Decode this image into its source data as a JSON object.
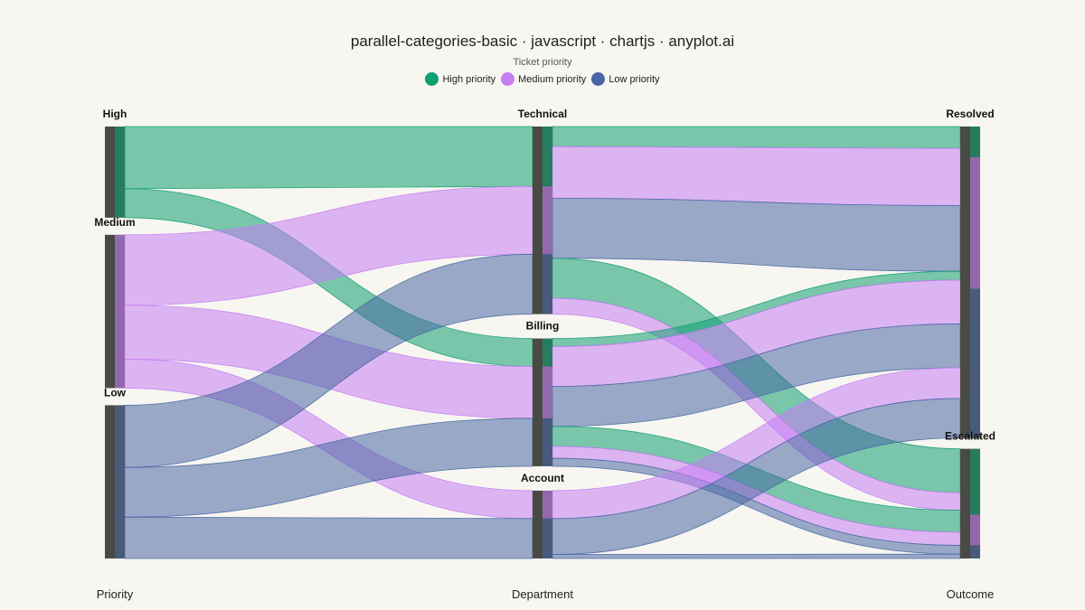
{
  "title": "parallel-categories-basic · javascript · chartjs · anyplot.ai",
  "subtitle": "Ticket priority",
  "colors": {
    "High": "#109e73",
    "Medium": "#c57ef4",
    "Low": "#4868a4",
    "bar": "#4a4a44"
  },
  "legend": [
    {
      "label": "High priority",
      "key": "High"
    },
    {
      "label": "Medium priority",
      "key": "Medium"
    },
    {
      "label": "Low priority",
      "key": "Low"
    }
  ],
  "chart_data": {
    "type": "parallel-categories",
    "dimensions": [
      {
        "name": "Priority",
        "categories": [
          "High",
          "Medium",
          "Low"
        ]
      },
      {
        "name": "Department",
        "categories": [
          "Technical",
          "Billing",
          "Account"
        ]
      },
      {
        "name": "Outcome",
        "categories": [
          "Resolved",
          "Escalated"
        ]
      }
    ],
    "color_by": "Priority",
    "flows": [
      {
        "priority": "High",
        "department": "Technical",
        "outcome": "Resolved",
        "count": 5
      },
      {
        "priority": "High",
        "department": "Technical",
        "outcome": "Escalated",
        "count": 10
      },
      {
        "priority": "High",
        "department": "Billing",
        "outcome": "Resolved",
        "count": 2
      },
      {
        "priority": "High",
        "department": "Billing",
        "outcome": "Escalated",
        "count": 5
      },
      {
        "priority": "Medium",
        "department": "Technical",
        "outcome": "Resolved",
        "count": 13
      },
      {
        "priority": "Medium",
        "department": "Technical",
        "outcome": "Escalated",
        "count": 4
      },
      {
        "priority": "Medium",
        "department": "Billing",
        "outcome": "Resolved",
        "count": 10
      },
      {
        "priority": "Medium",
        "department": "Billing",
        "outcome": "Escalated",
        "count": 3
      },
      {
        "priority": "Medium",
        "department": "Account",
        "outcome": "Resolved",
        "count": 7
      },
      {
        "priority": "Low",
        "department": "Technical",
        "outcome": "Resolved",
        "count": 15
      },
      {
        "priority": "Low",
        "department": "Billing",
        "outcome": "Resolved",
        "count": 10
      },
      {
        "priority": "Low",
        "department": "Billing",
        "outcome": "Escalated",
        "count": 2
      },
      {
        "priority": "Low",
        "department": "Account",
        "outcome": "Resolved",
        "count": 9
      },
      {
        "priority": "Low",
        "department": "Account",
        "outcome": "Escalated",
        "count": 1
      }
    ]
  }
}
